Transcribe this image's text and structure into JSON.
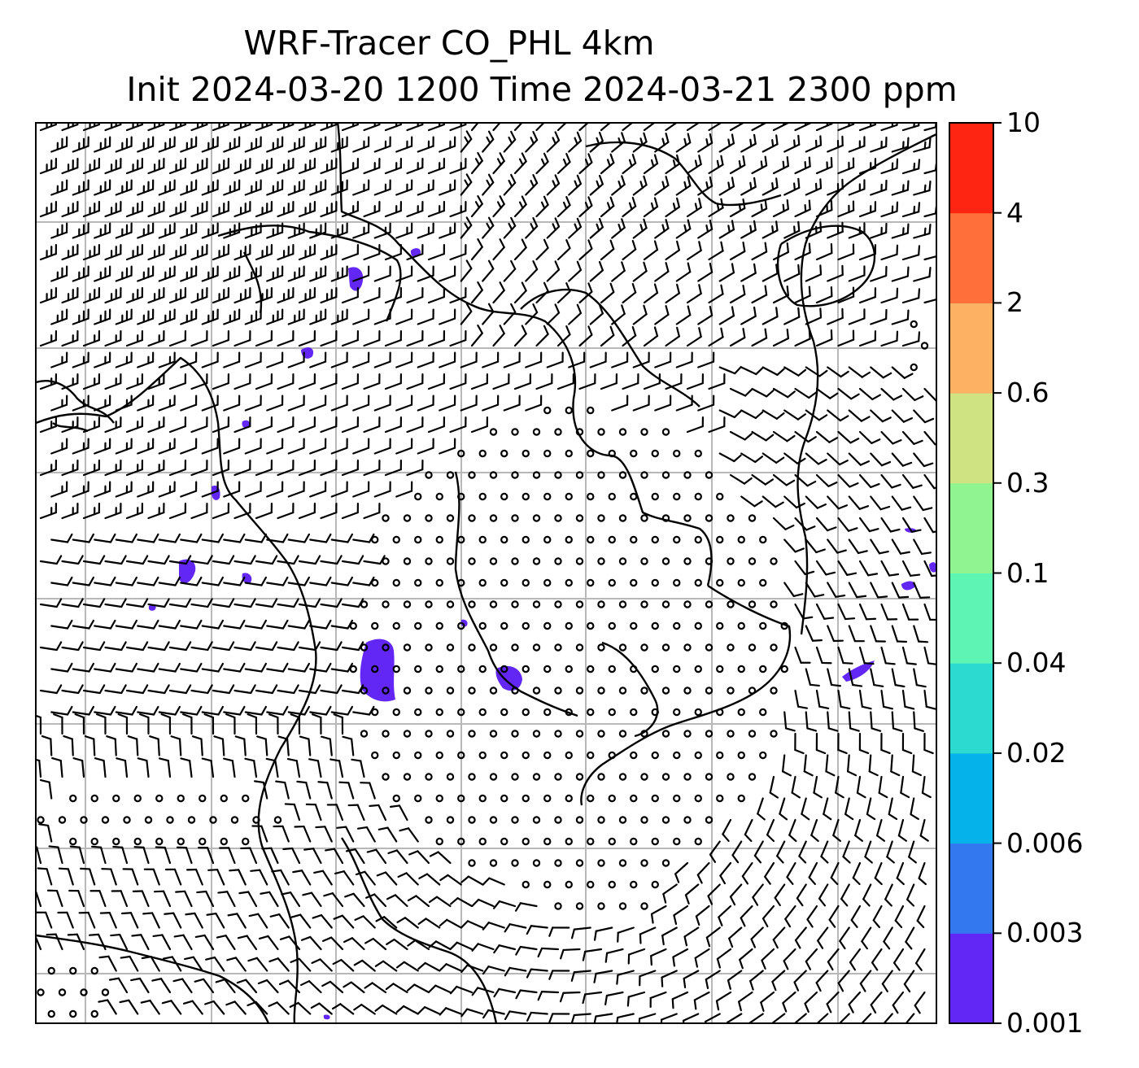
{
  "title": {
    "line1": "WRF-Tracer CO_PHL 4km",
    "line2": "Init 2024-03-20 1200 Time 2024-03-21 2300 ppm"
  },
  "colorbar": {
    "levels": [
      "0.001",
      "0.003",
      "0.006",
      "0.02",
      "0.04",
      "0.1",
      "0.3",
      "0.6",
      "2",
      "4",
      "10"
    ],
    "colors": [
      "#6226f5",
      "#3478f0",
      "#05b2ea",
      "#2cdad0",
      "#5ef5b4",
      "#90f590",
      "#cfe383",
      "#fcb163",
      "#fe6f3a",
      "#fe2613"
    ]
  },
  "map": {
    "field": "CO_PHL tracer concentration",
    "units": "ppm",
    "gridlines": true,
    "wind_barbs": true,
    "calm_marker": "circle",
    "plume_color": "#6226f5",
    "coastline_color": "#000000",
    "grid_color": "#b5b5b5"
  }
}
